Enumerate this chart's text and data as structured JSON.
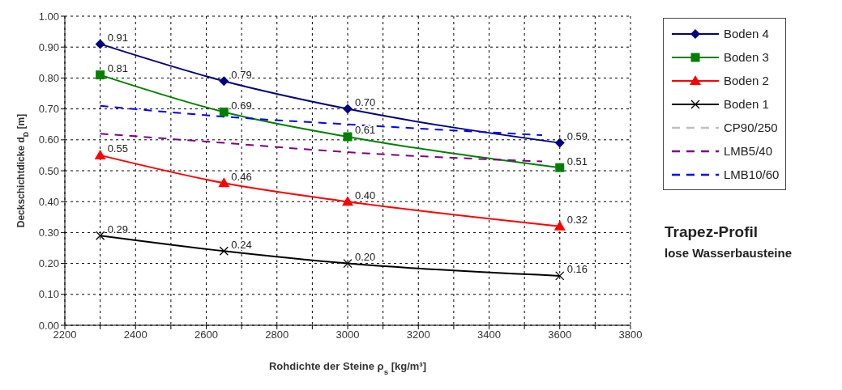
{
  "chart_data": {
    "type": "line",
    "xlabel": "Rohdichte der Steine ρ$_{s}$ [kg/m³]",
    "ylabel": "Deckschichtdicke d$_{D}$ [m]",
    "annotations": [
      "Trapez-Profil",
      "lose Wasserbausteine"
    ],
    "x": [
      2300,
      2650,
      3000,
      3600
    ],
    "series": [
      {
        "name": "Boden 4",
        "color": "#000080",
        "marker": "diamond",
        "values": [
          0.91,
          0.79,
          0.7,
          0.59
        ],
        "value_labels": [
          "0.91",
          "0.79",
          "0.70",
          "0.59"
        ]
      },
      {
        "name": "Boden 3",
        "color": "#008000",
        "marker": "square",
        "values": [
          0.81,
          0.69,
          0.61,
          0.51
        ],
        "value_labels": [
          "0.81",
          "0.69",
          "0.61",
          "0.51"
        ]
      },
      {
        "name": "Boden 2",
        "color": "#ff0000",
        "marker": "triangle",
        "values": [
          0.55,
          0.46,
          0.4,
          0.32
        ],
        "value_labels": [
          "0.55",
          "0.46",
          "0.40",
          "0.32"
        ]
      },
      {
        "name": "Boden 1",
        "color": "#000000",
        "marker": "cross",
        "values": [
          0.29,
          0.24,
          0.2,
          0.16
        ],
        "value_labels": [
          "0.29",
          "0.24",
          "0.20",
          "0.16"
        ]
      },
      {
        "name": "CP90/250",
        "color": "#c0c0c0",
        "line_style": "dashed",
        "values": [
          null,
          null,
          null,
          null
        ]
      },
      {
        "name": "LMB5/40",
        "color": "#800080",
        "line_style": "dashed",
        "x": [
          2300,
          2650,
          3000,
          3550
        ],
        "values": [
          0.62,
          0.59,
          0.56,
          0.53
        ]
      },
      {
        "name": "LMB10/60",
        "color": "#0000ff",
        "line_style": "dashed",
        "x": [
          2300,
          2650,
          3000,
          3550
        ],
        "values": [
          0.71,
          0.675,
          0.65,
          0.615
        ]
      }
    ],
    "xlim": [
      2200,
      3800
    ],
    "xticks": [
      2200,
      {
        "value": 2300,
        "label": null
      },
      2400,
      {
        "value": 2500,
        "label": null
      },
      2600,
      {
        "value": 2700,
        "label": null
      },
      2800,
      {
        "value": 2900,
        "label": null
      },
      3000,
      {
        "value": 3100,
        "label": null
      },
      3200,
      {
        "value": 3300,
        "label": null
      },
      3400,
      {
        "value": 3500,
        "label": null
      },
      3600,
      {
        "value": 3700,
        "label": null
      },
      3800
    ],
    "ylim": [
      0,
      1
    ],
    "yticks": [
      {
        "value": 0,
        "label": "0.00"
      },
      {
        "value": 0.1,
        "label": "0.10"
      },
      {
        "value": 0.2,
        "label": "0.20"
      },
      {
        "value": 0.3,
        "label": "0.30"
      },
      {
        "value": 0.4,
        "label": "0.40"
      },
      {
        "value": 0.5,
        "label": "0.50"
      },
      {
        "value": 0.6,
        "label": "0.60"
      },
      {
        "value": 0.7,
        "label": "0.70"
      },
      {
        "value": 0.8,
        "label": "0.80"
      },
      {
        "value": 0.9,
        "label": "0.90"
      },
      {
        "value": 1,
        "label": "1.00"
      }
    ],
    "grid": true,
    "legend": "right"
  }
}
